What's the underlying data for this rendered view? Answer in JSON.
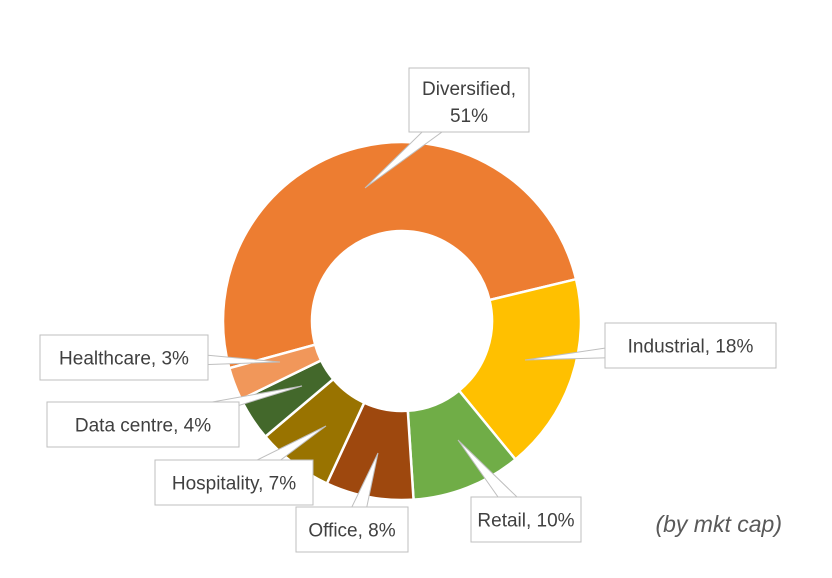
{
  "chart_data": {
    "type": "pie",
    "variant": "doughnut",
    "title": "",
    "note": "(by mkt cap)",
    "grid": false,
    "legend": "none",
    "slices": [
      {
        "label": "Diversified",
        "value": 51,
        "display": "Diversified,",
        "pct": "51%",
        "color": "#ED7D31"
      },
      {
        "label": "Industrial",
        "value": 18,
        "display": "Industrial, 18%",
        "color": "#FFC000"
      },
      {
        "label": "Retail",
        "value": 10,
        "display": "Retail, 10%",
        "color": "#70AD47"
      },
      {
        "label": "Office",
        "value": 8,
        "display": "Office, 8%",
        "color": "#9E480E"
      },
      {
        "label": "Hospitality",
        "value": 7,
        "display": "Hospitality, 7%",
        "color": "#997300"
      },
      {
        "label": "Data centre",
        "value": 4,
        "display": "Data centre, 4%",
        "color": "#43682B"
      },
      {
        "label": "Healthcare",
        "value": 3,
        "display": "Healthcare, 3%",
        "color": "#F1975A"
      }
    ]
  }
}
